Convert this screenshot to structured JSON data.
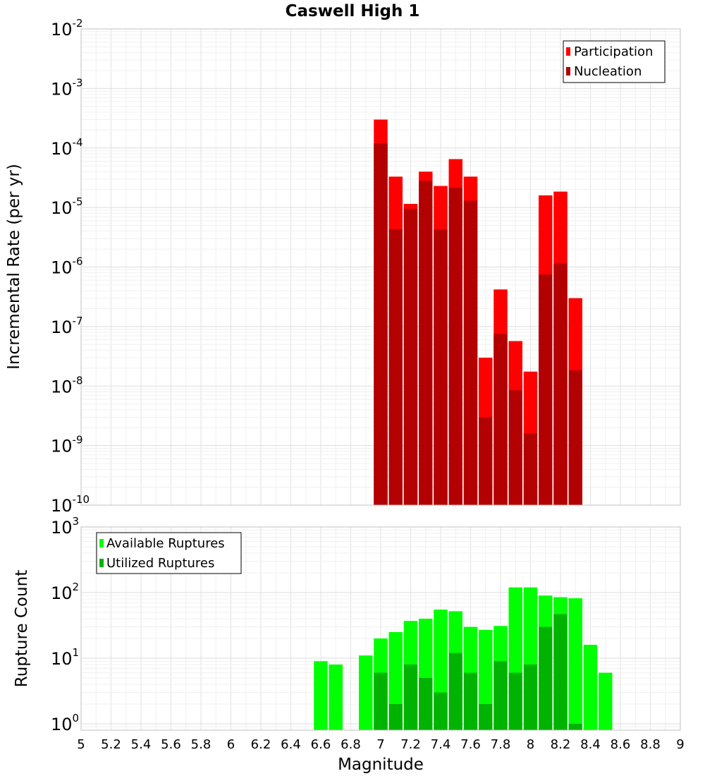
{
  "title": "Caswell High 1",
  "chart_data": [
    {
      "type": "bar",
      "scale": "log",
      "ylabel": "Incremental Rate (per yr)",
      "ylim": [
        1e-10,
        0.01
      ],
      "xlim": [
        5,
        9
      ],
      "legend_position": "top-right",
      "grid": true,
      "y_tick_exponents": [
        -2,
        -3,
        -4,
        -5,
        -6,
        -7,
        -8,
        -9,
        -10
      ],
      "x": [
        7.0,
        7.1,
        7.2,
        7.3,
        7.4,
        7.5,
        7.6,
        7.7,
        7.8,
        7.9,
        8.0,
        8.1,
        8.2,
        8.3
      ],
      "series": [
        {
          "name": "Participation",
          "color": "#ff0000",
          "values": [
            0.0003,
            3.3e-05,
            1.15e-05,
            4e-05,
            2.3e-05,
            6.5e-05,
            3.3e-05,
            3e-08,
            4.2e-07,
            5.7e-08,
            1.75e-08,
            1.6e-05,
            1.85e-05,
            3e-07
          ]
        },
        {
          "name": "Nucleation",
          "color": "#b30000",
          "values": [
            0.00012,
            4.3e-06,
            9.5e-06,
            2.8e-05,
            4.3e-06,
            2.15e-05,
            1.3e-05,
            3e-09,
            7.5e-08,
            8.5e-09,
            1.6e-09,
            7.5e-07,
            1.15e-06,
            1.85e-08
          ]
        }
      ]
    },
    {
      "type": "bar",
      "scale": "log",
      "ylabel": "Rupture Count",
      "xlabel": "Magnitude",
      "ylim": [
        0.8,
        1000
      ],
      "xlim": [
        5,
        9
      ],
      "legend_position": "top-left",
      "grid": true,
      "y_tick_exponents": [
        3,
        2,
        1,
        0
      ],
      "x_ticks": [
        "5",
        "5.2",
        "5.4",
        "5.6",
        "5.8",
        "6",
        "6.2",
        "6.4",
        "6.6",
        "6.8",
        "7",
        "7.2",
        "7.4",
        "7.6",
        "7.8",
        "8",
        "8.2",
        "8.4",
        "8.6",
        "8.8",
        "9"
      ],
      "x": [
        6.6,
        6.7,
        6.9,
        7.0,
        7.1,
        7.2,
        7.3,
        7.4,
        7.5,
        7.6,
        7.7,
        7.8,
        7.9,
        8.0,
        8.1,
        8.2,
        8.3,
        8.4,
        8.5
      ],
      "series": [
        {
          "name": "Available Ruptures",
          "color": "#00ff00",
          "values": [
            9,
            8,
            11,
            20,
            25,
            37,
            40,
            55,
            52,
            30,
            27,
            31,
            120,
            120,
            90,
            85,
            82,
            16,
            6
          ]
        },
        {
          "name": "Utilized Ruptures",
          "color": "#00b300",
          "values": [
            0,
            0,
            0,
            6,
            2,
            8,
            5,
            3,
            12,
            6,
            2,
            9,
            6,
            8,
            30,
            47,
            1,
            0,
            0
          ]
        }
      ]
    }
  ]
}
